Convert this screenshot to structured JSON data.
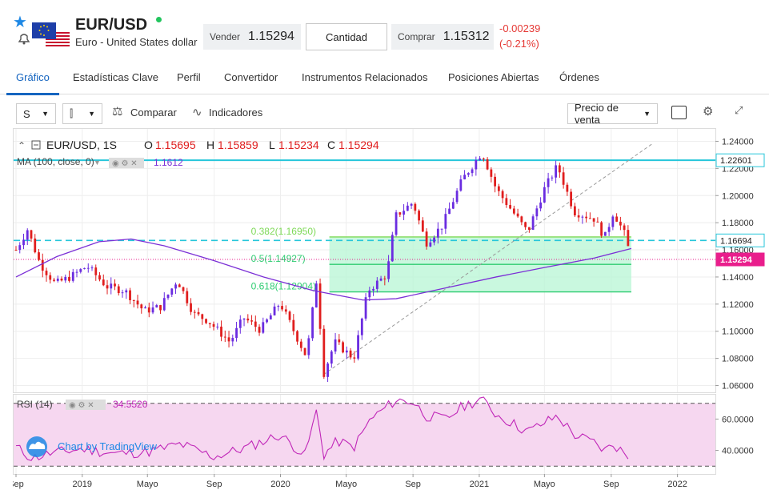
{
  "header": {
    "symbol": "EUR/USD",
    "name": "Euro - United States dollar",
    "sell_label": "Vender",
    "sell_price": "1.15294",
    "quantity_label": "Cantidad",
    "buy_label": "Comprar",
    "buy_price": "1.15312",
    "change": "-0.00239",
    "change_pct": "(-0.21%)",
    "favorite_icon": "star-icon",
    "alert_icon": "bell-icon",
    "flag_icon": "eu-us-flag-icon"
  },
  "tabs": [
    {
      "label": "Gráfico",
      "active": true
    },
    {
      "label": "Estadísticas Clave"
    },
    {
      "label": "Perfil"
    },
    {
      "label": "Convertidor"
    },
    {
      "label": "Instrumentos Relacionados"
    },
    {
      "label": "Posiciones Abiertas"
    },
    {
      "label": "Órdenes"
    }
  ],
  "toolbar": {
    "interval": "S",
    "compare": "Comparar",
    "indicators": "Indicadores",
    "price_type": "Precio de venta"
  },
  "colors": {
    "up": "#6a2ce0",
    "down": "#e01e1e",
    "ma": "#7b2fd6",
    "rsi": "#c026b8",
    "accent": "#1565c0",
    "fib_zone": "#b7f5d4",
    "price_tag": "#e91e8c"
  },
  "chart_data": [
    {
      "type": "candlestick",
      "legend": {
        "symbol": "EUR/USD, 1S",
        "o_label": "O",
        "o": "1.15695",
        "h_label": "H",
        "h": "1.15859",
        "l_label": "L",
        "l": "1.15234",
        "c_label": "C",
        "c": "1.15294",
        "ma_label": "MA (100, close, 0)",
        "ma_value": "1.1612"
      },
      "ylim": [
        1.055,
        1.245
      ],
      "yticks": [
        "1.24000",
        "1.22000",
        "1.20000",
        "1.18000",
        "1.16000",
        "1.14000",
        "1.12000",
        "1.10000",
        "1.08000",
        "1.06000"
      ],
      "xlim": [
        "2018-09-01",
        "2022-02-28"
      ],
      "xticks": [
        {
          "label": "Sep",
          "date": "2018-09-01"
        },
        {
          "label": "2019",
          "date": "2019-01-01"
        },
        {
          "label": "Mayo",
          "date": "2019-05-01"
        },
        {
          "label": "Sep",
          "date": "2019-09-01"
        },
        {
          "label": "2020",
          "date": "2020-01-01"
        },
        {
          "label": "Mayo",
          "date": "2020-05-01"
        },
        {
          "label": "Sep",
          "date": "2020-09-01"
        },
        {
          "label": "2021",
          "date": "2021-01-01"
        },
        {
          "label": "Mayo",
          "date": "2021-05-01"
        },
        {
          "label": "Sep",
          "date": "2021-09-01"
        },
        {
          "label": "2022",
          "date": "2022-01-01"
        }
      ],
      "price_path": [
        {
          "date": "2018-09-01",
          "v": 1.16
        },
        {
          "date": "2018-09-22",
          "v": 1.175
        },
        {
          "date": "2018-10-15",
          "v": 1.15
        },
        {
          "date": "2018-11-12",
          "v": 1.135
        },
        {
          "date": "2018-12-10",
          "v": 1.14
        },
        {
          "date": "2019-01-10",
          "v": 1.148
        },
        {
          "date": "2019-02-15",
          "v": 1.133
        },
        {
          "date": "2019-03-20",
          "v": 1.13
        },
        {
          "date": "2019-04-25",
          "v": 1.115
        },
        {
          "date": "2019-05-25",
          "v": 1.118
        },
        {
          "date": "2019-06-25",
          "v": 1.138
        },
        {
          "date": "2019-07-25",
          "v": 1.113
        },
        {
          "date": "2019-08-20",
          "v": 1.108
        },
        {
          "date": "2019-09-30",
          "v": 1.092
        },
        {
          "date": "2019-10-25",
          "v": 1.11
        },
        {
          "date": "2019-11-25",
          "v": 1.101
        },
        {
          "date": "2019-12-31",
          "v": 1.121
        },
        {
          "date": "2020-02-18",
          "v": 1.081
        },
        {
          "date": "2020-03-08",
          "v": 1.14
        },
        {
          "date": "2020-03-20",
          "v": 1.068
        },
        {
          "date": "2020-04-10",
          "v": 1.092
        },
        {
          "date": "2020-05-15",
          "v": 1.08
        },
        {
          "date": "2020-06-10",
          "v": 1.13
        },
        {
          "date": "2020-07-15",
          "v": 1.142
        },
        {
          "date": "2020-07-31",
          "v": 1.185
        },
        {
          "date": "2020-09-01",
          "v": 1.195
        },
        {
          "date": "2020-09-25",
          "v": 1.165
        },
        {
          "date": "2020-10-25",
          "v": 1.178
        },
        {
          "date": "2020-12-01",
          "v": 1.212
        },
        {
          "date": "2021-01-06",
          "v": 1.232
        },
        {
          "date": "2021-02-01",
          "v": 1.205
        },
        {
          "date": "2021-03-31",
          "v": 1.173
        },
        {
          "date": "2021-05-01",
          "v": 1.205
        },
        {
          "date": "2021-05-25",
          "v": 1.222
        },
        {
          "date": "2021-06-25",
          "v": 1.188
        },
        {
          "date": "2021-07-31",
          "v": 1.183
        },
        {
          "date": "2021-08-20",
          "v": 1.169
        },
        {
          "date": "2021-09-05",
          "v": 1.188
        },
        {
          "date": "2021-09-25",
          "v": 1.172
        },
        {
          "date": "2021-10-08",
          "v": 1.153
        }
      ],
      "ma_line": [
        {
          "date": "2018-09-01",
          "v": 1.14
        },
        {
          "date": "2018-11-15",
          "v": 1.155
        },
        {
          "date": "2019-02-01",
          "v": 1.166
        },
        {
          "date": "2019-04-01",
          "v": 1.168
        },
        {
          "date": "2019-06-01",
          "v": 1.163
        },
        {
          "date": "2019-09-01",
          "v": 1.152
        },
        {
          "date": "2019-12-01",
          "v": 1.14
        },
        {
          "date": "2020-03-01",
          "v": 1.13
        },
        {
          "date": "2020-06-01",
          "v": 1.123
        },
        {
          "date": "2020-08-01",
          "v": 1.124
        },
        {
          "date": "2020-11-01",
          "v": 1.132
        },
        {
          "date": "2021-02-01",
          "v": 1.14
        },
        {
          "date": "2021-05-01",
          "v": 1.147
        },
        {
          "date": "2021-08-01",
          "v": 1.154
        },
        {
          "date": "2021-10-08",
          "v": 1.161
        }
      ],
      "horizontal_lines": [
        {
          "name": "resistance-line",
          "price": 1.22601,
          "tag": "1.22601",
          "color": "#26c6da"
        },
        {
          "name": "dashed-level",
          "price": 1.16694,
          "tag": "1.16694",
          "color": "#26c6da"
        },
        {
          "name": "last-price-line",
          "price": 1.15294,
          "tag": "1.15294",
          "color": "#e91e8c"
        }
      ],
      "fibonacci": {
        "start": "2020-03-31",
        "end": "2021-10-08",
        "levels": [
          {
            "label": "0.382(1.16950)",
            "price": 1.1695,
            "color": "#7ed957"
          },
          {
            "label": "0.5(1.14927)",
            "price": 1.14927,
            "color": "#2ecc71"
          },
          {
            "label": "0.618(1.12904)",
            "price": 1.12904,
            "color": "#2ecc71"
          }
        ]
      },
      "trend_line": [
        {
          "date": "2020-03-20",
          "v": 1.068
        },
        {
          "date": "2021-11-15",
          "v": 1.238
        }
      ]
    },
    {
      "type": "line",
      "legend": {
        "label": "RSI (14)",
        "value": "34.5520"
      },
      "ylim": [
        25,
        75
      ],
      "yticks": [
        "60.0000",
        "40.0000"
      ],
      "bands": [
        30,
        70
      ],
      "values": [
        {
          "date": "2018-09-01",
          "v": 42
        },
        {
          "date": "2018-10-01",
          "v": 35
        },
        {
          "date": "2018-11-01",
          "v": 38
        },
        {
          "date": "2019-01-01",
          "v": 41
        },
        {
          "date": "2019-03-01",
          "v": 38
        },
        {
          "date": "2019-05-01",
          "v": 39
        },
        {
          "date": "2019-07-01",
          "v": 44
        },
        {
          "date": "2019-09-01",
          "v": 36
        },
        {
          "date": "2019-11-01",
          "v": 42
        },
        {
          "date": "2019-12-31",
          "v": 50
        },
        {
          "date": "2020-02-15",
          "v": 37
        },
        {
          "date": "2020-03-08",
          "v": 66
        },
        {
          "date": "2020-03-20",
          "v": 37
        },
        {
          "date": "2020-04-15",
          "v": 46
        },
        {
          "date": "2020-05-15",
          "v": 42
        },
        {
          "date": "2020-06-15",
          "v": 60
        },
        {
          "date": "2020-07-31",
          "v": 72
        },
        {
          "date": "2020-09-01",
          "v": 71
        },
        {
          "date": "2020-09-25",
          "v": 62
        },
        {
          "date": "2020-11-01",
          "v": 60
        },
        {
          "date": "2020-12-01",
          "v": 68
        },
        {
          "date": "2021-01-06",
          "v": 73
        },
        {
          "date": "2021-02-01",
          "v": 63
        },
        {
          "date": "2021-03-31",
          "v": 52
        },
        {
          "date": "2021-05-25",
          "v": 62
        },
        {
          "date": "2021-06-25",
          "v": 50
        },
        {
          "date": "2021-07-31",
          "v": 45
        },
        {
          "date": "2021-08-20",
          "v": 40
        },
        {
          "date": "2021-09-05",
          "v": 44
        },
        {
          "date": "2021-10-08",
          "v": 34.6
        }
      ],
      "watermark": "Chart by TradingView"
    }
  ]
}
